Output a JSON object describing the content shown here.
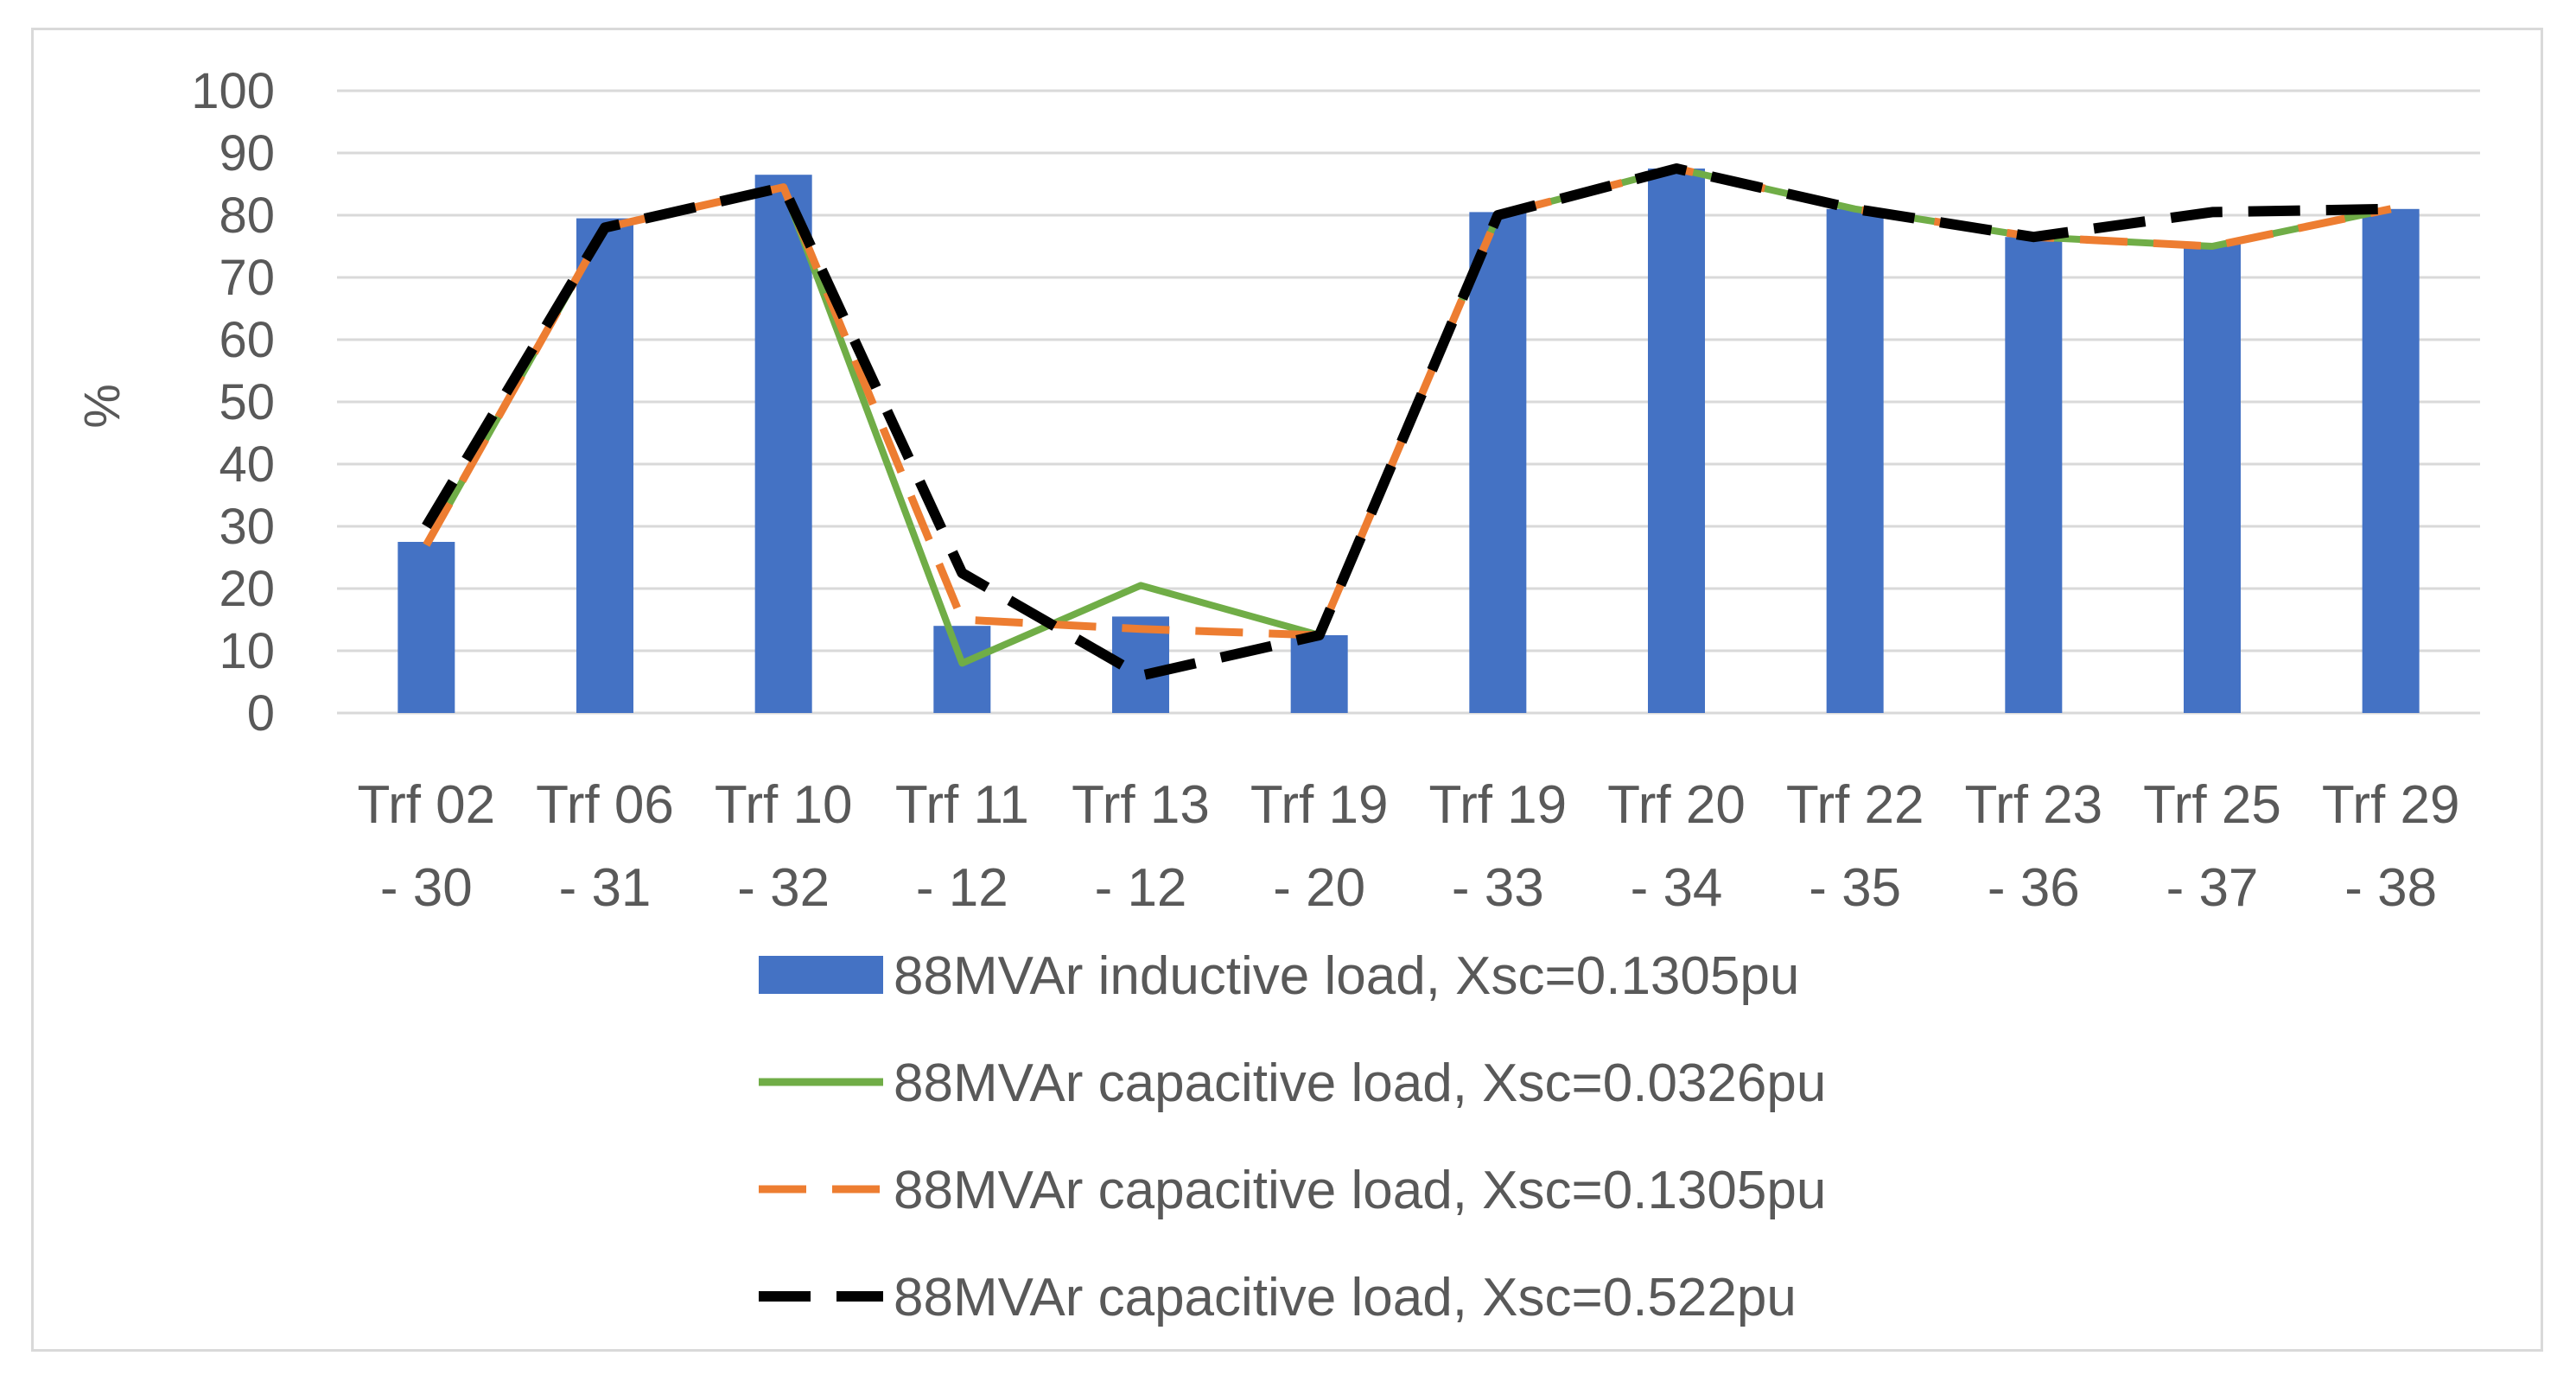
{
  "chart_data": {
    "type": "bar",
    "title": "",
    "xlabel": "",
    "ylabel": "%",
    "ylim": [
      0,
      100
    ],
    "yticks": [
      "0",
      "10",
      "20",
      "30",
      "40",
      "50",
      "60",
      "70",
      "80",
      "90",
      "100"
    ],
    "grid": true,
    "categories": [
      [
        "Trf 02",
        "- 30"
      ],
      [
        "Trf 06",
        "- 31"
      ],
      [
        "Trf 10",
        "- 32"
      ],
      [
        "Trf 11",
        "- 12"
      ],
      [
        "Trf 13",
        "- 12"
      ],
      [
        "Trf 19",
        "- 20"
      ],
      [
        "Trf 19",
        "- 33"
      ],
      [
        "Trf 20",
        "- 34"
      ],
      [
        "Trf 22",
        "- 35"
      ],
      [
        "Trf 23",
        "- 36"
      ],
      [
        "Trf 25",
        "- 37"
      ],
      [
        "Trf 29",
        "- 38"
      ]
    ],
    "series": [
      {
        "name": "88MVAr inductive load, Xsc=0.1305pu",
        "kind": "bar",
        "color": "#4472C4",
        "values": [
          27.5,
          79.5,
          86.5,
          14,
          15.5,
          12.5,
          80.5,
          87.5,
          81,
          76.5,
          75.5,
          81
        ]
      },
      {
        "name": "88MVAr capacitive load, Xsc=0.0326pu",
        "kind": "line",
        "style": "solid",
        "color": "#70AD47",
        "values": [
          27,
          78,
          84.5,
          8,
          20.5,
          12.5,
          80,
          87.5,
          81,
          76.5,
          75,
          81
        ]
      },
      {
        "name": "88MVAr capacitive load, Xsc=0.1305pu",
        "kind": "line",
        "style": "dashed",
        "color": "#ED7D31",
        "values": [
          27,
          78,
          84.5,
          15,
          13.5,
          12.5,
          80,
          87.5,
          81,
          76.5,
          75,
          81
        ]
      },
      {
        "name": "88MVAr capacitive load, Xsc=0.522pu",
        "kind": "line",
        "style": "dashed",
        "color": "#000000",
        "values": [
          30,
          78,
          84.5,
          22.5,
          6,
          12.5,
          80,
          87.5,
          81,
          76.5,
          80.5,
          81
        ]
      }
    ],
    "legend_position": "bottom"
  }
}
